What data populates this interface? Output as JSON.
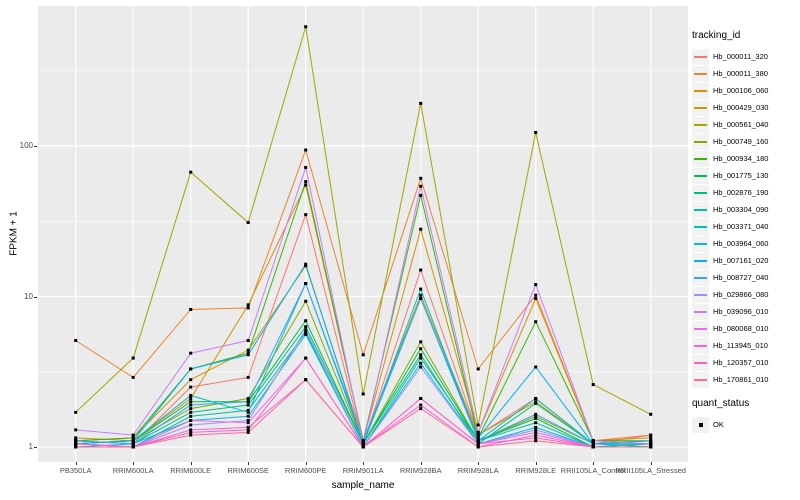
{
  "chart_data": {
    "type": "line",
    "title": "",
    "xlabel": "sample_name",
    "ylabel": "FPKM + 1",
    "y_scale": "log10",
    "y_ticks": [
      1,
      10,
      100
    ],
    "ylim": [
      1,
      700
    ],
    "grid": true,
    "panel_background": "#EBEBEB",
    "gridline_color": "#FFFFFF",
    "point_marker": "black-square",
    "legend_position": "right",
    "legend_title": "tracking_id",
    "x_categories": [
      "PB350LA",
      "RRIM600LA",
      "RRIM600LE",
      "RRIM600SE",
      "RRIM600PE",
      "RRIM901LA",
      "RRIM928BA",
      "RRIM928LA",
      "RRIM928LE",
      "RRII105LA_Control",
      "RRII105LA_Stressed"
    ],
    "series": [
      {
        "name": "Hb_000011_320",
        "color": "#F8766D",
        "values": [
          1.1,
          1.05,
          2.5,
          2.9,
          35,
          1.05,
          15,
          1.2,
          2.1,
          1.05,
          1.2
        ]
      },
      {
        "name": "Hb_000011_380",
        "color": "#EA8331",
        "values": [
          5.1,
          2.9,
          8.2,
          8.4,
          94,
          4.1,
          61,
          3.3,
          10.2,
          1.1,
          1.2
        ]
      },
      {
        "name": "Hb_000106_060",
        "color": "#D89000",
        "values": [
          1.15,
          1.1,
          2.1,
          8.8,
          55,
          1.1,
          28,
          1.25,
          9.7,
          1.1,
          1.15
        ]
      },
      {
        "name": "Hb_000429_030",
        "color": "#C49A00",
        "values": [
          1.1,
          1.15,
          2.8,
          4.4,
          16,
          1.1,
          10.2,
          1.2,
          2.0,
          1.05,
          1.1
        ]
      },
      {
        "name": "Hb_000561_040",
        "color": "#A3A500",
        "values": [
          1.7,
          3.9,
          67,
          31,
          620,
          2.25,
          192,
          1.4,
          123,
          2.6,
          1.65
        ]
      },
      {
        "name": "Hb_000749_160",
        "color": "#7CAE00",
        "values": [
          1.05,
          1.1,
          1.8,
          2.1,
          9.3,
          1.05,
          5.0,
          1.1,
          1.6,
          1.05,
          1.05
        ]
      },
      {
        "name": "Hb_000934_180",
        "color": "#39B600",
        "values": [
          1.1,
          1.15,
          3.3,
          4.2,
          58,
          1.1,
          47,
          1.15,
          6.8,
          1.1,
          1.1
        ]
      },
      {
        "name": "Hb_001775_130",
        "color": "#00BB4E",
        "values": [
          1.05,
          1.1,
          2.0,
          2.0,
          6.9,
          1.05,
          4.5,
          1.1,
          1.55,
          1.0,
          1.05
        ]
      },
      {
        "name": "Hb_002876_190",
        "color": "#00BF7D",
        "values": [
          1.1,
          1.05,
          1.7,
          1.9,
          6.3,
          1.05,
          4.1,
          1.05,
          1.95,
          1.05,
          1.0
        ]
      },
      {
        "name": "Hb_003304_090",
        "color": "#00C1A3",
        "values": [
          1.05,
          1.0,
          1.6,
          1.75,
          5.8,
          1.0,
          3.9,
          1.1,
          1.45,
          1.0,
          1.05
        ]
      },
      {
        "name": "Hb_003371_040",
        "color": "#00BFC4",
        "values": [
          1.05,
          1.1,
          2.2,
          1.7,
          12.2,
          1.05,
          11.2,
          1.1,
          2.1,
          1.05,
          1.0
        ]
      },
      {
        "name": "Hb_003964_060",
        "color": "#00BAE0",
        "values": [
          1.0,
          1.05,
          1.5,
          1.6,
          5.6,
          1.0,
          3.6,
          1.05,
          1.35,
          1.0,
          1.0
        ]
      },
      {
        "name": "Hb_007161_020",
        "color": "#00B0F6",
        "values": [
          1.05,
          1.1,
          3.3,
          4.1,
          16.4,
          1.05,
          9.7,
          1.15,
          3.4,
          1.05,
          1.1
        ]
      },
      {
        "name": "Hb_008727_040",
        "color": "#35A2FF",
        "values": [
          1.1,
          1.05,
          1.9,
          2.0,
          12.2,
          1.1,
          9.7,
          1.1,
          1.65,
          1.05,
          1.05
        ]
      },
      {
        "name": "Hb_029866_080",
        "color": "#9590FF",
        "values": [
          1.05,
          1.0,
          1.4,
          1.5,
          6.0,
          1.0,
          3.4,
          1.05,
          1.3,
          1.0,
          1.0
        ]
      },
      {
        "name": "Hb_039096_010",
        "color": "#C77CFF",
        "values": [
          1.3,
          1.2,
          4.2,
          5.1,
          72,
          1.05,
          54,
          1.25,
          12.0,
          1.1,
          1.05
        ]
      },
      {
        "name": "Hb_080068_010",
        "color": "#E76BF3",
        "values": [
          1.05,
          1.0,
          1.5,
          1.45,
          3.9,
          1.0,
          2.1,
          1.05,
          1.25,
          1.0,
          1.0
        ]
      },
      {
        "name": "Hb_113945_010",
        "color": "#FA62DB",
        "values": [
          1.0,
          1.0,
          1.3,
          1.35,
          2.8,
          1.0,
          1.9,
          1.0,
          1.2,
          1.0,
          1.0
        ]
      },
      {
        "name": "Hb_120357_010",
        "color": "#FF62BC",
        "values": [
          1.05,
          1.0,
          1.25,
          1.3,
          3.9,
          1.0,
          2.1,
          1.05,
          1.15,
          1.0,
          1.0
        ]
      },
      {
        "name": "Hb_170861_010",
        "color": "#FF6A98",
        "values": [
          1.0,
          1.0,
          1.2,
          1.25,
          2.8,
          1.0,
          1.8,
          1.0,
          1.1,
          1.0,
          1.0
        ]
      }
    ],
    "quant_status": {
      "title": "quant_status",
      "items": [
        "OK"
      ],
      "marker_color": "#000000"
    }
  }
}
